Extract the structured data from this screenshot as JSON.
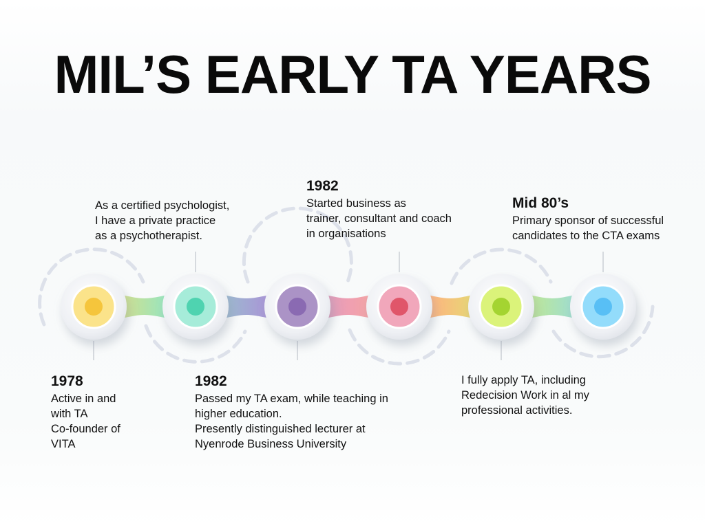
{
  "title": "MIL’S EARLY TA YEARS",
  "milestones": [
    {
      "year": "1978",
      "lines": [
        "Active in and",
        "with TA",
        "Co-founder of",
        "VITA"
      ]
    },
    {
      "year": "",
      "lines": [
        "As a certified psychologist,",
        "I have a private practice",
        "as a psychotherapist."
      ]
    },
    {
      "year": "1982",
      "lines": [
        "Passed my TA exam, while teaching in",
        "higher education.",
        "Presently distinguished lecturer at",
        "Nyenrode Business University"
      ]
    },
    {
      "year": "1982",
      "lines": [
        "Started business as",
        "trainer, consultant and coach",
        "in organisations"
      ]
    },
    {
      "year": "",
      "lines": [
        "I fully apply TA, including",
        "Redecision Work in al my",
        "professional activities."
      ]
    },
    {
      "year": "Mid 80’s",
      "lines": [
        "Primary sponsor of successful",
        "candidates to the CTA exams"
      ]
    }
  ],
  "colors": {
    "node_fills": [
      "#fbe38a",
      "#a6ecd9",
      "#ab93c6",
      "#f1a7bb",
      "#dbf37a",
      "#93dcfb"
    ],
    "node_dots": [
      "#f5c53c",
      "#4fd3b0",
      "#8a6ab2",
      "#e0566a",
      "#a4d431",
      "#58bff5"
    ],
    "ring": "#dde1ea",
    "connector": "#bfc4cc"
  }
}
